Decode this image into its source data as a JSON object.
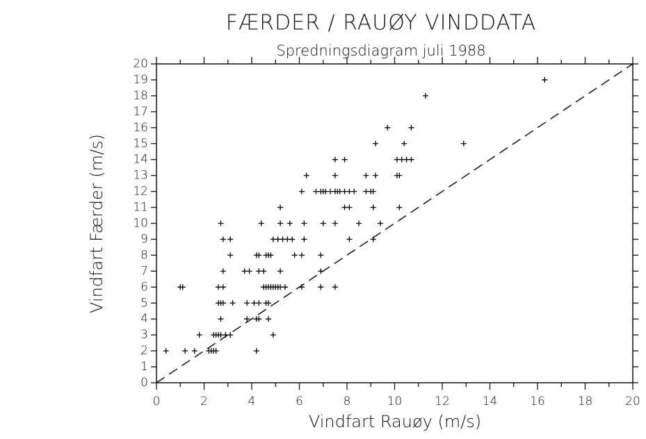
{
  "chart_data": {
    "type": "scatter",
    "title": "FÆRDER / RAUØY  VINDDATA",
    "subtitle": "Spredningsdiagram juli 1988",
    "x_label": "Vindfart Rauøy (m/s)",
    "y_label": "Vindfart Færder (m/s)",
    "xlim": [
      0,
      20
    ],
    "ylim": [
      0,
      20
    ],
    "xticks": [
      0,
      2,
      4,
      6,
      8,
      10,
      12,
      14,
      16,
      18,
      20
    ],
    "xminorticks": [
      1,
      3,
      5,
      7,
      9,
      11,
      13,
      15,
      17,
      19
    ],
    "yticks": [
      0,
      1,
      2,
      3,
      4,
      5,
      6,
      7,
      8,
      9,
      10,
      11,
      12,
      13,
      14,
      15,
      16,
      17,
      18,
      19,
      20
    ],
    "color": "#000000",
    "reference_line": {
      "x": [
        0,
        20
      ],
      "y": [
        0,
        20
      ],
      "dashed": true
    },
    "series": [
      {
        "x": [
          0.4,
          1.2,
          1.6,
          2.2,
          2.3,
          2.4,
          2.5,
          4.2,
          1.8,
          2.4,
          2.5,
          2.6,
          2.7,
          2.9,
          3.1,
          4.9,
          2.7,
          3.8,
          4.2,
          4.3,
          4.7,
          2.6,
          2.7,
          2.8,
          3.2,
          3.8,
          4.1,
          4.3,
          4.6,
          4.7,
          1.0,
          1.1,
          2.6,
          2.8,
          4.5,
          4.6,
          4.7,
          4.8,
          4.9,
          5.0,
          5.1,
          5.2,
          5.4,
          6.1,
          6.9,
          7.5,
          2.8,
          3.7,
          3.9,
          4.3,
          4.5,
          5.2,
          6.9,
          3.1,
          4.2,
          4.3,
          4.6,
          4.7,
          4.8,
          5.8,
          6.1,
          6.9,
          2.8,
          3.1,
          4.9,
          5.1,
          5.3,
          5.5,
          5.7,
          6.2,
          8.1,
          9.1,
          2.7,
          4.4,
          5.2,
          5.6,
          6.2,
          7.0,
          7.5,
          8.5,
          9.4,
          5.2,
          7.9,
          8.1,
          9.1,
          10.2,
          6.1,
          6.7,
          6.9,
          7.0,
          7.1,
          7.3,
          7.5,
          7.6,
          7.7,
          7.9,
          8.1,
          8.3,
          8.8,
          9.0,
          9.1,
          6.3,
          7.5,
          8.8,
          9.2,
          10.1,
          10.2,
          7.5,
          7.9,
          10.1,
          10.3,
          10.5,
          10.7,
          9.2,
          10.4,
          12.9,
          9.7,
          10.7,
          11.3,
          16.3
        ],
        "y": [
          2,
          2,
          2,
          2,
          2,
          2,
          2,
          2,
          3,
          3,
          3,
          3,
          3,
          3,
          3,
          3,
          4,
          4,
          4,
          4,
          4,
          5,
          5,
          5,
          5,
          5,
          5,
          5,
          5,
          5,
          6,
          6,
          6,
          6,
          6,
          6,
          6,
          6,
          6,
          6,
          6,
          6,
          6,
          6,
          6,
          6,
          7,
          7,
          7,
          7,
          7,
          7,
          7,
          8,
          8,
          8,
          8,
          8,
          8,
          8,
          8,
          8,
          9,
          9,
          9,
          9,
          9,
          9,
          9,
          9,
          9,
          9,
          10,
          10,
          10,
          10,
          10,
          10,
          10,
          10,
          10,
          11,
          11,
          11,
          11,
          11,
          12,
          12,
          12,
          12,
          12,
          12,
          12,
          12,
          12,
          12,
          12,
          12,
          12,
          12,
          12,
          13,
          13,
          13,
          13,
          13,
          13,
          14,
          14,
          14,
          14,
          14,
          14,
          15,
          15,
          15,
          16,
          16,
          18,
          19
        ]
      }
    ]
  }
}
